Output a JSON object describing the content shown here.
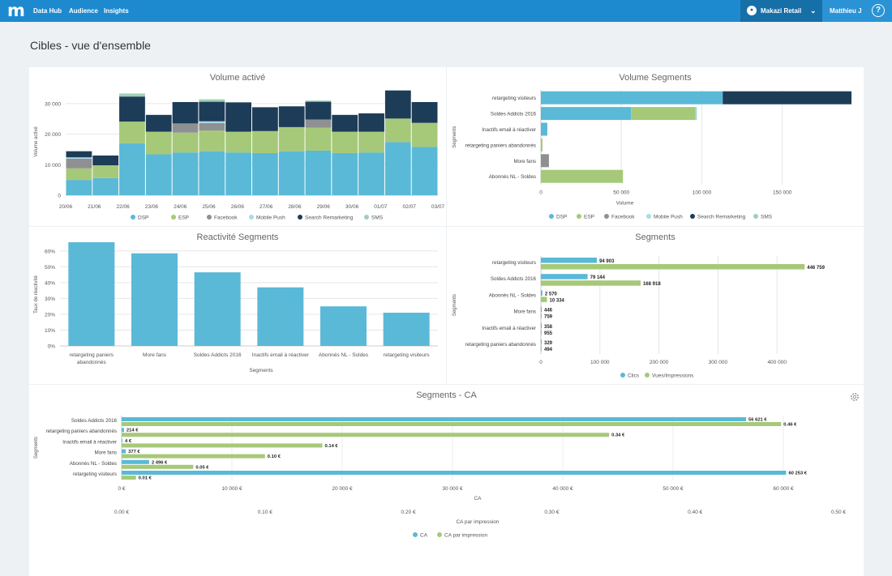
{
  "topbar": {
    "logo": "m",
    "nav": [
      "Data Hub",
      "Audience",
      "Insights"
    ],
    "org": "Makazi Retail",
    "user": "Matthieu J",
    "help": "?"
  },
  "page": {
    "title": "Cibles - vue d'ensemble"
  },
  "colors": {
    "DSP": "#5ab9d7",
    "ESP": "#a6c979",
    "Facebook": "#8f9091",
    "Mobile Push": "#a8dce8",
    "Search Remarketing": "#1d3c58",
    "SMS": "#9fd0b4",
    "Clics": "#5ab9d7",
    "Vues/Impressions": "#a6c979",
    "CA": "#5ab9d7",
    "CA par impression": "#a6c979"
  },
  "chart_data": [
    {
      "type": "bar",
      "title": "Volume activé",
      "ylabel": "Volume activé",
      "ylim": [
        0,
        35000
      ],
      "yticks": [
        "0",
        "10 000",
        "20 000",
        "30 000"
      ],
      "categories": [
        "20/06",
        "21/06",
        "22/06",
        "23/06",
        "24/06",
        "25/06",
        "26/06",
        "27/06",
        "28/06",
        "29/06",
        "30/06",
        "01/07",
        "02/07",
        "03/07"
      ],
      "xtick_labels": [
        "20/06",
        "21/06",
        "22/06",
        "23/06",
        "24/06",
        "25/06",
        "26/06",
        "27/06",
        "28/06",
        "29/06",
        "30/06",
        "01/07",
        "02/07",
        "03/07"
      ],
      "series": [
        {
          "name": "DSP",
          "values": [
            5000,
            5600,
            17000,
            13400,
            14000,
            14400,
            14000,
            13800,
            14400,
            14600,
            13800,
            14000,
            17400,
            15800
          ]
        },
        {
          "name": "ESP",
          "values": [
            3800,
            4200,
            7100,
            7400,
            6500,
            6800,
            6800,
            7200,
            7900,
            7500,
            7000,
            6800,
            7700,
            7900
          ]
        },
        {
          "name": "Facebook",
          "values": [
            3200,
            0,
            0,
            0,
            3000,
            2400,
            0,
            0,
            0,
            2700,
            0,
            0,
            0,
            0
          ]
        },
        {
          "name": "Mobile Push",
          "values": [
            400,
            0,
            0,
            0,
            0,
            600,
            0,
            0,
            0,
            0,
            0,
            0,
            0,
            0
          ]
        },
        {
          "name": "Search Remarketing",
          "values": [
            2000,
            3200,
            8200,
            5500,
            7000,
            6400,
            9600,
            7800,
            6800,
            5800,
            5500,
            6000,
            9200,
            6800
          ]
        },
        {
          "name": "SMS",
          "values": [
            0,
            0,
            1000,
            0,
            0,
            800,
            0,
            0,
            0,
            400,
            0,
            0,
            0,
            0
          ]
        }
      ]
    },
    {
      "type": "bar",
      "title": "Volume Segments",
      "xlabel": "Volume",
      "ylabel": "Segments",
      "xlim": [
        0,
        195000
      ],
      "xticks": [
        "0",
        "50 000",
        "100 000",
        "150 000"
      ],
      "categories": [
        "retargeting visiteurs",
        "Soldes Addicts 2016",
        "Inactifs email à réactiver",
        "retargeting paniers abandonnés",
        "More fans",
        "Abonnés NL - Soldes"
      ],
      "series": [
        {
          "name": "DSP",
          "values": [
            113000,
            56000,
            4000,
            0,
            0,
            0
          ]
        },
        {
          "name": "ESP",
          "values": [
            0,
            40000,
            0,
            1000,
            0,
            51000
          ]
        },
        {
          "name": "Facebook",
          "values": [
            0,
            0,
            0,
            0,
            5000,
            0
          ]
        },
        {
          "name": "Mobile Push",
          "values": [
            0,
            1000,
            0,
            0,
            0,
            0
          ]
        },
        {
          "name": "Search Remarketing",
          "values": [
            80000,
            0,
            0,
            0,
            0,
            0
          ]
        },
        {
          "name": "SMS",
          "values": [
            0,
            0,
            0,
            0,
            0,
            0
          ]
        }
      ]
    },
    {
      "type": "bar",
      "title": "Reactivité Segments",
      "xlabel": "Segments",
      "ylabel": "Taux de réactivité",
      "ylim": [
        0,
        0.65
      ],
      "yticks": [
        "0%",
        "10%",
        "20%",
        "30%",
        "40%",
        "50%",
        "60%"
      ],
      "categories": [
        "retargeting paniers abandonnés",
        "More fans",
        "Soldes Addicts 2016",
        "Inactifs email à réactiver",
        "Abonnés NL - Soldes",
        "retargeting visiteurs"
      ],
      "category_lines": [
        [
          "retargeting paniers",
          "abandonnés"
        ],
        [
          "More fans"
        ],
        [
          "Soldes Addicts 2016"
        ],
        [
          "Inactifs email à réactiver"
        ],
        [
          "Abonnés NL - Soldes"
        ],
        [
          "retargeting visiteurs"
        ]
      ],
      "values": [
        0.655,
        0.585,
        0.465,
        0.37,
        0.25,
        0.21
      ]
    },
    {
      "type": "bar",
      "title": "Segments",
      "ylabel": "Segments",
      "xlim": [
        0,
        500000
      ],
      "xticks": [
        "0",
        "100 000",
        "200 000",
        "300 000",
        "400 000"
      ],
      "categories": [
        "retargeting visiteurs",
        "Soldes Addicts 2016",
        "Abonnés NL - Soldes",
        "More fans",
        "Inactifs email à réactiver",
        "retargeting paniers abandonnés"
      ],
      "series": [
        {
          "name": "Clics",
          "values": [
            94903,
            79144,
            2570,
            446,
            358,
            329
          ],
          "labels": [
            "94 903",
            "79 144",
            "2 570",
            "446",
            "358",
            "329"
          ]
        },
        {
          "name": "Vues/Impressions",
          "values": [
            446759,
            168918,
            10334,
            759,
            955,
            494
          ],
          "labels": [
            "446 759",
            "168 918",
            "10 334",
            "759",
            "955",
            "494"
          ]
        }
      ]
    },
    {
      "type": "bar",
      "title": "Segments - CA",
      "ylabel": "Segments",
      "categories": [
        "Soldes Addicts 2016",
        "retargeting paniers abandonnés",
        "Inactifs email à réactiver",
        "More fans",
        "Abonnés NL - Soldes",
        "retargeting visiteurs"
      ],
      "axes": [
        {
          "xlabel": "CA",
          "xlim": [
            0,
            65000
          ],
          "ticks": [
            0,
            10000,
            20000,
            30000,
            40000,
            50000,
            60000
          ],
          "tick_labels": [
            "0 €",
            "10 000 €",
            "20 000 €",
            "30 000 €",
            "40 000 €",
            "50 000 €",
            "60 000 €"
          ]
        },
        {
          "xlabel": "CA par impression",
          "xlim": [
            0,
            0.5
          ],
          "ticks": [
            0,
            0.1,
            0.2,
            0.3,
            0.4,
            0.5
          ],
          "tick_labels": [
            "0.00 €",
            "0.10 €",
            "0.20 €",
            "0.30 €",
            "0.40 €",
            "0.50 €"
          ]
        }
      ],
      "series": [
        {
          "name": "CA",
          "values": [
            56621,
            214,
            4,
            377,
            2496,
            60253
          ],
          "labels": [
            "56 621 €",
            "214 €",
            "4 €",
            "377 €",
            "2 496 €",
            "60 253 €"
          ]
        },
        {
          "name": "CA par impression",
          "values": [
            0.46,
            0.34,
            0.14,
            0.1,
            0.05,
            0.01
          ],
          "labels": [
            "0.46 €",
            "0.34 €",
            "0.14 €",
            "0.10 €",
            "0.05 €",
            "0.01 €"
          ]
        }
      ]
    }
  ]
}
